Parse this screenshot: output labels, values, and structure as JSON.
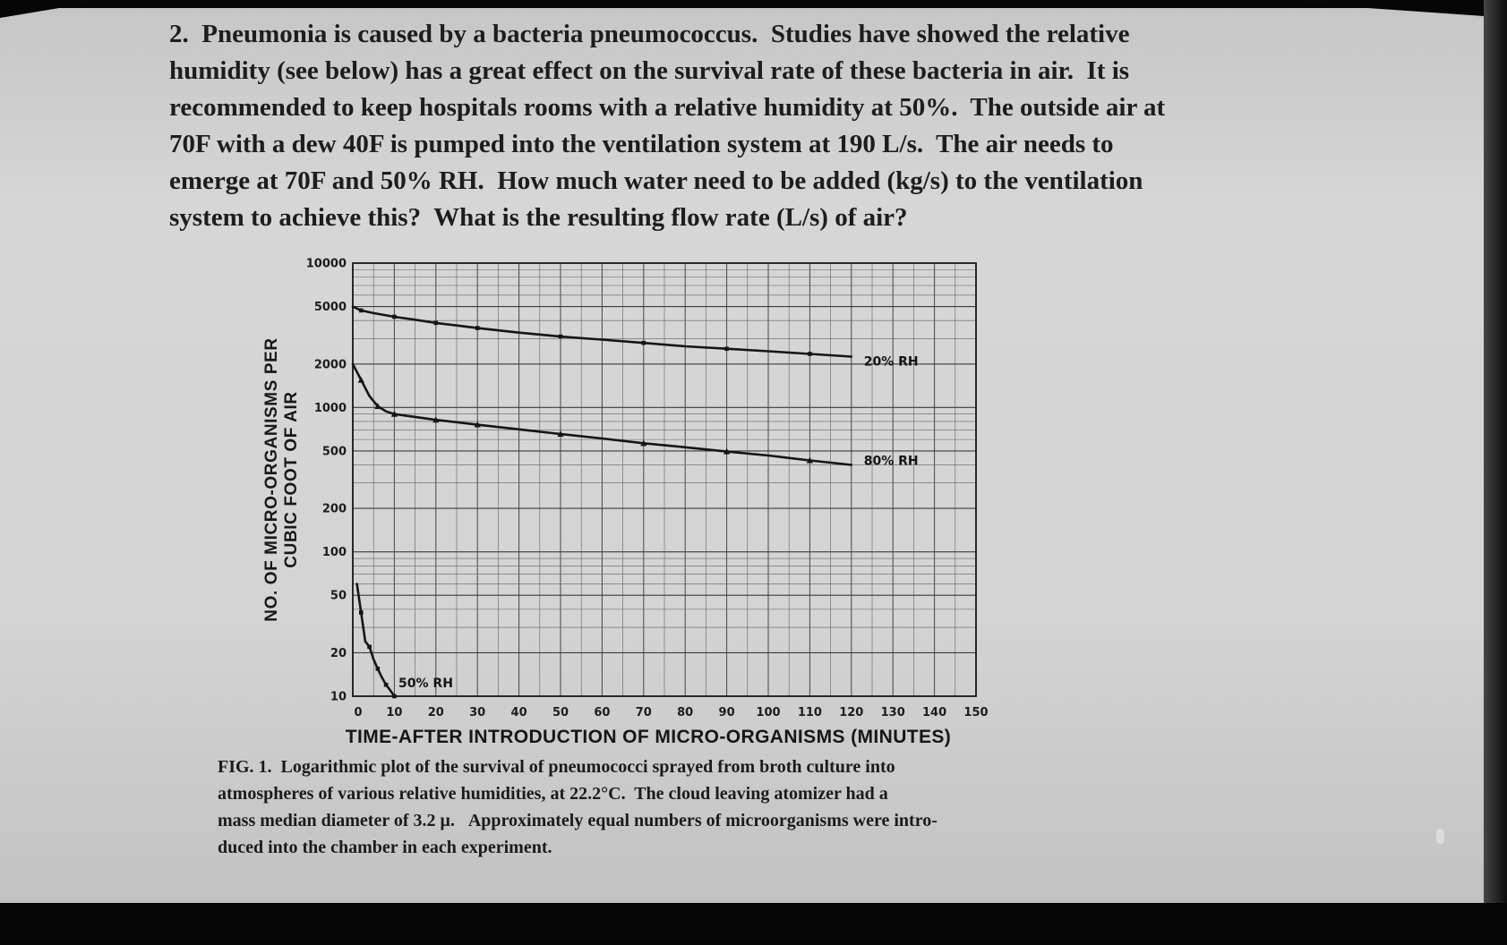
{
  "screen": {
    "background_color": "#101010",
    "page_color": "#d4d4d4"
  },
  "problem": {
    "lines": [
      "2.  Pneumonia is caused by a bacteria pneumococcus.  Studies have showed the relative",
      "humidity (see below) has a great effect on the survival rate of these bacteria in air.  It is",
      "recommended to keep hospitals rooms with a relative humidity at 50%.  The outside air at",
      "70F with a dew 40F is pumped into the ventilation system at 190 L/s.  The air needs to",
      "emerge at 70F and 50% RH.  How much water need to be added (kg/s) to the ventilation",
      "system to achieve this?  What is the resulting flow rate (L/s) of air?"
    ]
  },
  "figure": {
    "caption_lines": [
      "FIG. 1.  Logarithmic plot of the survival of pneumococci sprayed from broth culture into",
      "atmospheres of various relative humidities, at 22.2°C.  The cloud leaving atomizer had a",
      "mass median diameter of 3.2 μ.   Approximately equal numbers of microorganisms were intro-",
      "duced into the chamber in each experiment."
    ]
  },
  "chart_data": {
    "type": "line",
    "title": "",
    "xlabel": "TIME-AFTER INTRODUCTION OF MICRO-ORGANISMS (MINUTES)",
    "ylabel": "NO. OF MICRO-ORGANISMS PER CUBIC FOOT OF AIR",
    "ylabel_lines": [
      "NO. OF MICRO-ORGANISMS PER",
      "CUBIC FOOT OF AIR"
    ],
    "x_scale": "linear",
    "y_scale": "log",
    "xlim": [
      0,
      150
    ],
    "ylim": [
      10,
      10000
    ],
    "x_ticks": [
      0,
      10,
      20,
      30,
      40,
      50,
      60,
      70,
      80,
      90,
      100,
      110,
      120,
      130,
      140,
      150
    ],
    "y_ticks": [
      10,
      20,
      50,
      100,
      200,
      500,
      1000,
      2000,
      5000,
      10000
    ],
    "grid": true,
    "legend_position": "inline-labels",
    "series": [
      {
        "name": "20% RH",
        "marker": "square",
        "label_pos": [
          123,
          2100
        ],
        "points": [
          [
            0,
            5000
          ],
          [
            2,
            4700
          ],
          [
            5,
            4500
          ],
          [
            10,
            4250
          ],
          [
            15,
            4050
          ],
          [
            20,
            3850
          ],
          [
            25,
            3700
          ],
          [
            30,
            3550
          ],
          [
            40,
            3300
          ],
          [
            50,
            3100
          ],
          [
            60,
            2950
          ],
          [
            70,
            2800
          ],
          [
            80,
            2650
          ],
          [
            90,
            2550
          ],
          [
            100,
            2450
          ],
          [
            110,
            2350
          ],
          [
            120,
            2250
          ]
        ]
      },
      {
        "name": "80% RH",
        "marker": "triangle",
        "label_pos": [
          123,
          430
        ],
        "points": [
          [
            0,
            2000
          ],
          [
            2,
            1550
          ],
          [
            4,
            1200
          ],
          [
            6,
            1020
          ],
          [
            8,
            940
          ],
          [
            10,
            900
          ],
          [
            15,
            860
          ],
          [
            20,
            820
          ],
          [
            25,
            790
          ],
          [
            30,
            760
          ],
          [
            40,
            705
          ],
          [
            50,
            655
          ],
          [
            60,
            610
          ],
          [
            70,
            565
          ],
          [
            80,
            530
          ],
          [
            90,
            495
          ],
          [
            100,
            465
          ],
          [
            110,
            430
          ],
          [
            120,
            400
          ]
        ]
      },
      {
        "name": "50% RH",
        "marker": "square",
        "label_pos": [
          11,
          12.4
        ],
        "points": [
          [
            1,
            60
          ],
          [
            2,
            38
          ],
          [
            3,
            24
          ],
          [
            4,
            22
          ],
          [
            5,
            18
          ],
          [
            6,
            15.5
          ],
          [
            7,
            13.5
          ],
          [
            8,
            12
          ],
          [
            9,
            11
          ],
          [
            10,
            10
          ]
        ]
      }
    ]
  }
}
